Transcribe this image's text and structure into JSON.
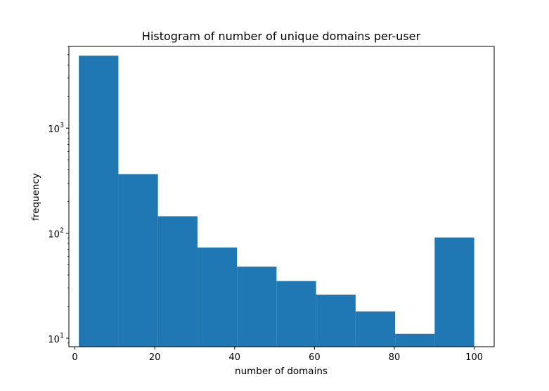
{
  "chart_data": {
    "type": "bar",
    "title": "Histogram of number of unique domains per-user",
    "xlabel": "number of domains",
    "ylabel": "frequency",
    "y_scale": "log",
    "xlim": [
      -1.5,
      105
    ],
    "ylim": [
      8.3,
      6000
    ],
    "x_ticks": [
      0,
      20,
      40,
      60,
      80,
      100
    ],
    "y_major_ticks": [
      {
        "value": 10,
        "base": "10",
        "exp": "1"
      },
      {
        "value": 100,
        "base": "10",
        "exp": "2"
      },
      {
        "value": 1000,
        "base": "10",
        "exp": "3"
      }
    ],
    "bins": [
      {
        "start": 1,
        "end": 10.9,
        "count": 4900
      },
      {
        "start": 10.9,
        "end": 20.8,
        "count": 365
      },
      {
        "start": 20.8,
        "end": 30.7,
        "count": 145
      },
      {
        "start": 30.7,
        "end": 40.6,
        "count": 73
      },
      {
        "start": 40.6,
        "end": 50.5,
        "count": 48
      },
      {
        "start": 50.5,
        "end": 60.4,
        "count": 35
      },
      {
        "start": 60.4,
        "end": 70.3,
        "count": 26
      },
      {
        "start": 70.3,
        "end": 80.2,
        "count": 18
      },
      {
        "start": 80.2,
        "end": 90.1,
        "count": 11
      },
      {
        "start": 90.1,
        "end": 100,
        "count": 91
      }
    ],
    "bar_color": "#1f77b4",
    "grid": false,
    "legend": "none"
  }
}
